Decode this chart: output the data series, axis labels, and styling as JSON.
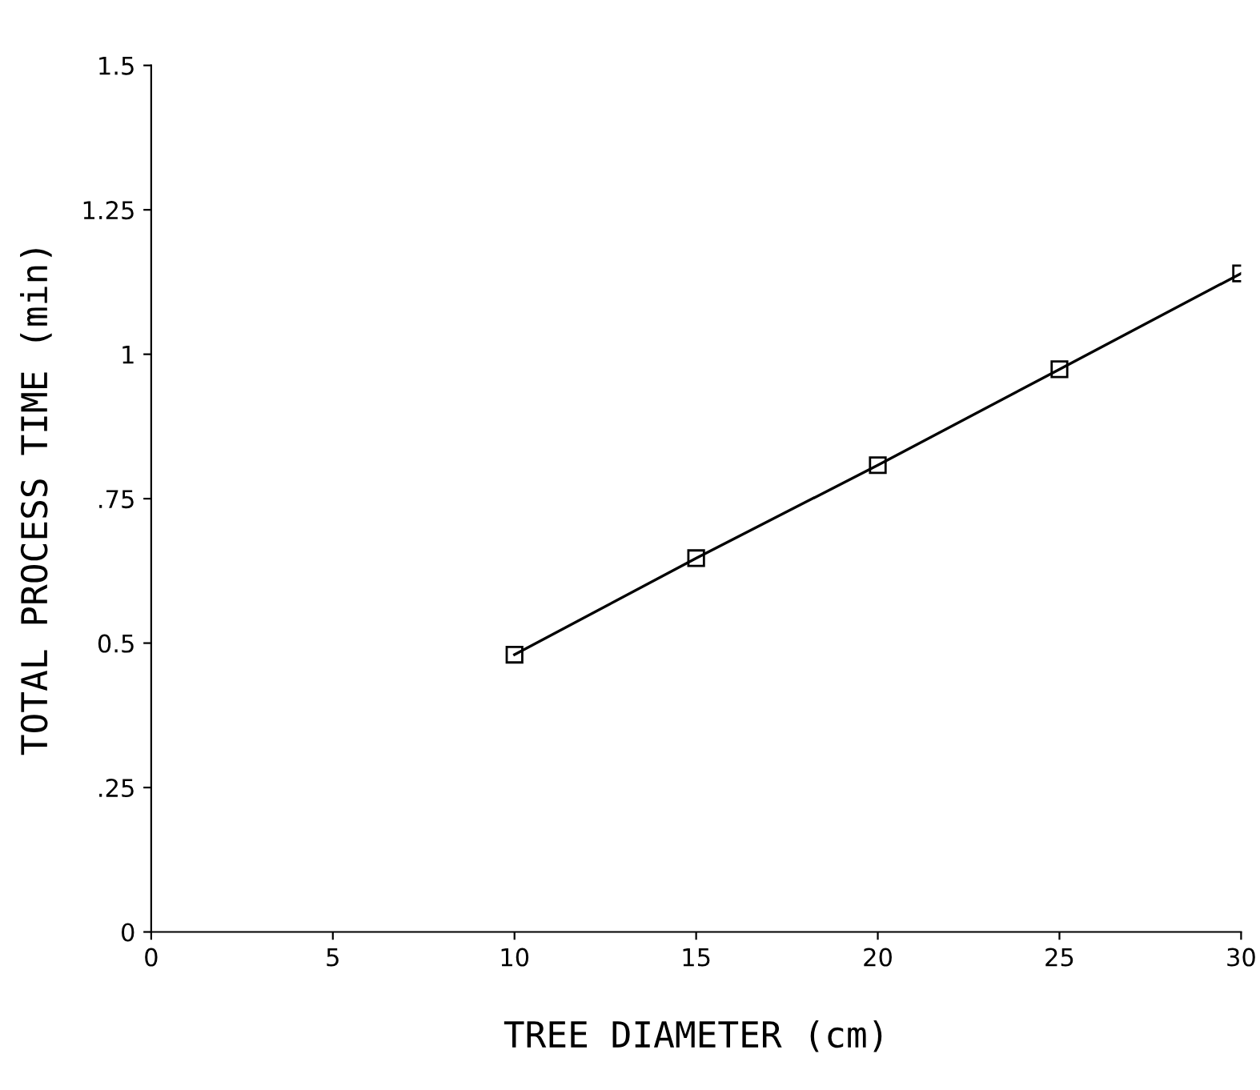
{
  "chart_data": {
    "type": "line",
    "xlabel": "TREE DIAMETER (cm)",
    "ylabel": "TOTAL PROCESS TIME (min)",
    "x": [
      10,
      15,
      20,
      25,
      30
    ],
    "series": [
      {
        "color": "#000000",
        "values": [
          0.48,
          0.647,
          0.808,
          0.974,
          1.14
        ]
      }
    ],
    "marker": "square",
    "line_style": "solid",
    "grid": false,
    "legend": false,
    "xlim": [
      0,
      30
    ],
    "xticks": [
      0,
      5,
      10,
      15,
      20,
      25,
      30
    ],
    "ylim": [
      0,
      1.5
    ],
    "yticks": [
      0,
      {
        "value": 0.25,
        "label": ".25"
      },
      0.5,
      {
        "value": 0.75,
        "label": ".75"
      },
      1,
      1.25,
      1.5
    ]
  }
}
